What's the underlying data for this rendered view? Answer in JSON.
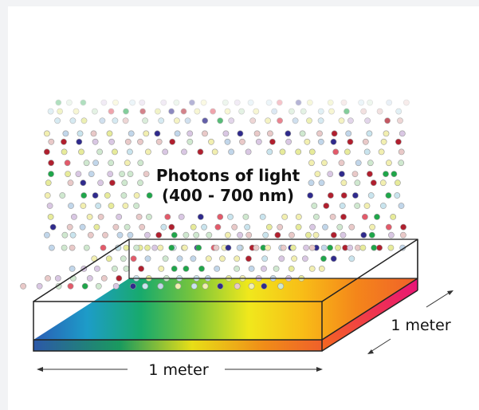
{
  "diagram": {
    "photon_label_line1": "Photons of light",
    "photon_label_line2": "(400 - 700 nm)",
    "width_label": "1 meter",
    "depth_label": "1 meter"
  },
  "colors": {
    "photon_palette": [
      "#f2efb0",
      "#d9c7e3",
      "#c9e4ee",
      "#e9c9c8",
      "#cfe8cf",
      "#e7eb9a",
      "#c1d6ea",
      "#b01f2e",
      "#2f2a8c",
      "#1fa64a",
      "#e35a6a",
      "#ece2a2"
    ],
    "spectrum": [
      "#1f5fb0",
      "#1f9fd0",
      "#25b36a",
      "#9bd12a",
      "#f2ea1a",
      "#f7b21a",
      "#f06a1a",
      "#e0186a"
    ]
  }
}
